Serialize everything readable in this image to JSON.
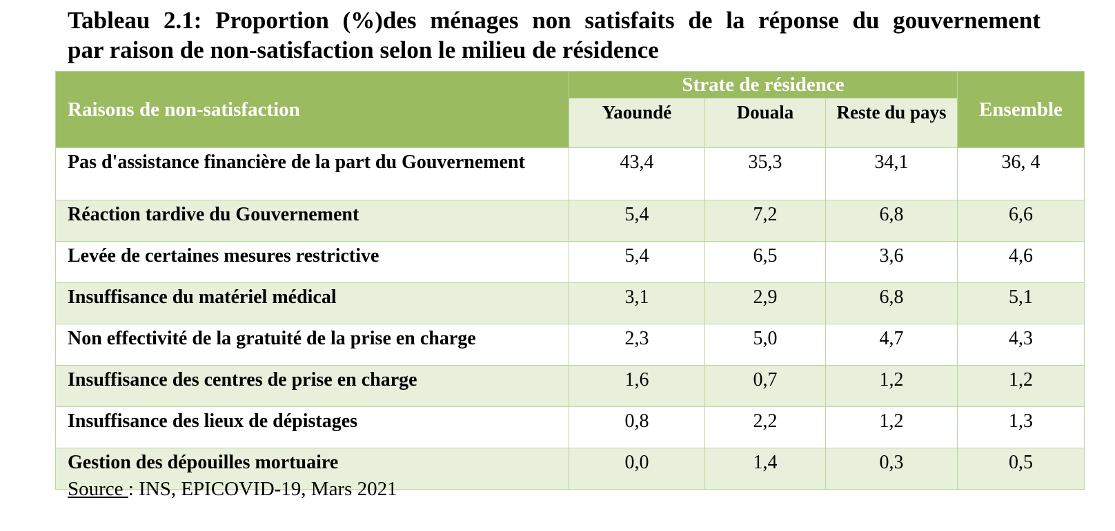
{
  "title": {
    "line1": "Tableau 2.1: Proportion (%)des ménages non satisfaits de la réponse du gouvernement",
    "line2": "par raison de non-satisfaction selon le milieu de résidence"
  },
  "table": {
    "header": {
      "reasons": "Raisons de non-satisfaction",
      "strate": "Strate de résidence",
      "yaounde": "Yaoundé",
      "douala": "Douala",
      "reste": "Reste du pays",
      "ensemble": "Ensemble"
    },
    "rows": [
      {
        "label": "Pas d'assistance financière de la part du Gouvernement",
        "yaounde": "43,4",
        "douala": "35,3",
        "reste": "34,1",
        "ensemble": "36, 4"
      },
      {
        "label": "Réaction tardive du Gouvernement",
        "yaounde": "5,4",
        "douala": "7,2",
        "reste": "6,8",
        "ensemble": "6,6"
      },
      {
        "label": "Levée de certaines mesures restrictive",
        "yaounde": "5,4",
        "douala": "6,5",
        "reste": "3,6",
        "ensemble": "4,6"
      },
      {
        "label": "Insuffisance du matériel médical",
        "yaounde": "3,1",
        "douala": "2,9",
        "reste": "6,8",
        "ensemble": "5,1"
      },
      {
        "label": "Non effectivité de la gratuité de la prise en charge",
        "yaounde": "2,3",
        "douala": "5,0",
        "reste": "4,7",
        "ensemble": "4,3"
      },
      {
        "label": "Insuffisance des centres de prise en charge",
        "yaounde": "1,6",
        "douala": "0,7",
        "reste": "1,2",
        "ensemble": "1,2"
      },
      {
        "label": "Insuffisance des lieux de dépistages",
        "yaounde": "0,8",
        "douala": "2,2",
        "reste": "1,2",
        "ensemble": "1,3"
      },
      {
        "label": "Gestion des dépouilles mortuaire",
        "yaounde": "0,0",
        "douala": "1,4",
        "reste": "0,3",
        "ensemble": "0,5"
      }
    ]
  },
  "source": {
    "label": "Source ",
    "text": ": INS, EPICOVID-19, Mars 2021"
  },
  "colors": {
    "header_green": "#9bbb61",
    "band_light_green": "#e8f0dc",
    "border_green": "#b9d69a"
  }
}
